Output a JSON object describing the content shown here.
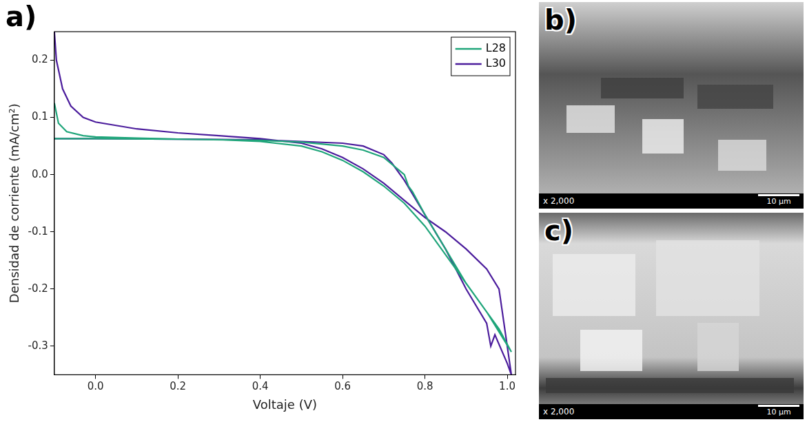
{
  "chart_data": {
    "type": "line",
    "panel_label": "a)",
    "x_label": "Voltaje (V)",
    "y_label": "Densidad de corriente (mA/cm²)",
    "xlim": [
      -0.1,
      1.02
    ],
    "ylim": [
      -0.35,
      0.25
    ],
    "xticks": [
      {
        "value": 0,
        "label": "0.0"
      },
      0.2,
      0.4,
      0.6,
      0.8,
      {
        "value": 1,
        "label": "1.0"
      }
    ],
    "yticks": [
      -0.3,
      -0.2,
      -0.1,
      {
        "value": 0,
        "label": "0.0"
      },
      0.1,
      0.2
    ],
    "grid": false,
    "legend": "upper right",
    "series": [
      {
        "name": "L28",
        "color": "#1fa57a",
        "x": [
          -0.1,
          -0.09,
          -0.07,
          -0.03,
          0.0,
          0.1,
          0.2,
          0.3,
          0.4,
          0.5,
          0.55,
          0.6,
          0.65,
          0.7,
          0.75,
          0.8,
          0.85,
          0.9,
          0.95,
          1.01,
          0.98,
          0.95,
          0.9,
          0.85,
          0.8,
          0.77,
          0.76,
          0.75,
          0.7,
          0.65,
          0.6,
          0.5,
          0.4,
          0.2,
          0.0,
          -0.1
        ],
        "values": [
          0.125,
          0.09,
          0.075,
          0.068,
          0.066,
          0.064,
          0.062,
          0.061,
          0.058,
          0.05,
          0.04,
          0.025,
          0.005,
          -0.02,
          -0.05,
          -0.09,
          -0.14,
          -0.19,
          -0.24,
          -0.31,
          -0.27,
          -0.24,
          -0.19,
          -0.13,
          -0.07,
          -0.03,
          -0.02,
          0.0,
          0.03,
          0.043,
          0.05,
          0.057,
          0.06,
          0.062,
          0.063,
          0.063
        ]
      },
      {
        "name": "L30",
        "color": "#4b1c9c",
        "x": [
          -0.1,
          -0.095,
          -0.08,
          -0.06,
          -0.03,
          0.0,
          0.1,
          0.2,
          0.3,
          0.4,
          0.5,
          0.55,
          0.6,
          0.65,
          0.7,
          0.75,
          0.8,
          0.85,
          0.9,
          0.95,
          0.98,
          1.01,
          1.0,
          0.97,
          0.96,
          0.95,
          0.9,
          0.85,
          0.8,
          0.75,
          0.72,
          0.7,
          0.65,
          0.6,
          0.5,
          0.4,
          0.2,
          0.0,
          -0.1
        ],
        "values": [
          0.25,
          0.2,
          0.15,
          0.12,
          0.1,
          0.092,
          0.08,
          0.073,
          0.068,
          0.063,
          0.055,
          0.045,
          0.03,
          0.01,
          -0.015,
          -0.045,
          -0.075,
          -0.1,
          -0.13,
          -0.165,
          -0.2,
          -0.35,
          -0.33,
          -0.28,
          -0.3,
          -0.26,
          -0.2,
          -0.13,
          -0.07,
          -0.01,
          0.02,
          0.035,
          0.05,
          0.055,
          0.058,
          0.061,
          0.062,
          0.063,
          0.063
        ]
      }
    ]
  },
  "images": [
    {
      "panel_label": "b)",
      "magnification": "x 2,000",
      "scale_bar": "10 µm"
    },
    {
      "panel_label": "c)",
      "magnification": "x 2,000",
      "scale_bar": "10 µm"
    }
  ]
}
